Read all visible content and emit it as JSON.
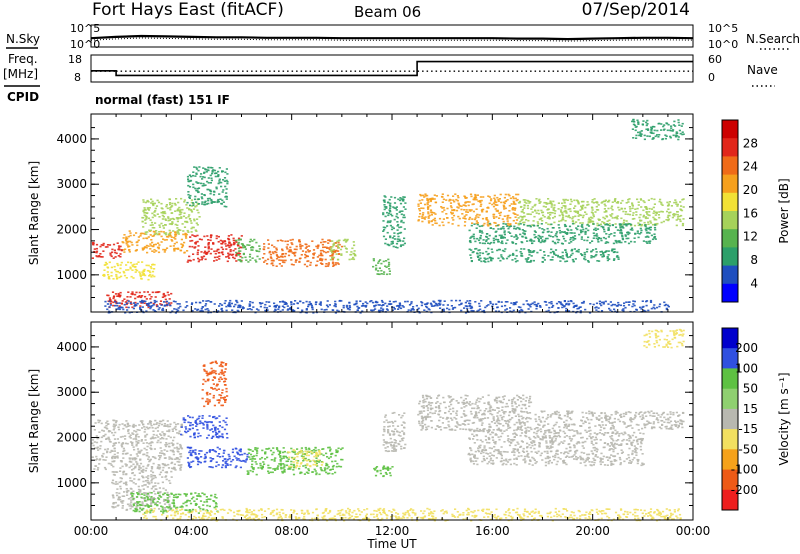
{
  "header": {
    "station": "Fort Hays East (fitACF)",
    "beam": "Beam 06",
    "date": "07/Sep/2014"
  },
  "left_labels": {
    "nsky": "N.Sky",
    "freq": "Freq.",
    "freq_unit": "[MHz]",
    "cpid": "CPID"
  },
  "right_labels": {
    "nsearch": "N.Search",
    "nave": "Nave"
  },
  "cpid_text": "normal (fast) 151 IF",
  "chart_data": [
    {
      "type": "line",
      "panel": "noise",
      "series": [
        {
          "name": "N.Sky",
          "style": "solid"
        },
        {
          "name": "N.Search",
          "style": "dotted"
        }
      ],
      "x": [
        0,
        1,
        2,
        3,
        4,
        5,
        6,
        7,
        8,
        9,
        10,
        11,
        12,
        13,
        14,
        15,
        16,
        17,
        18,
        19,
        20,
        21,
        22,
        23,
        24
      ],
      "y_nsky": [
        2.0,
        2.3,
        2.5,
        2.4,
        2.3,
        2.2,
        2.2,
        2.1,
        2.1,
        2.1,
        2.0,
        2.0,
        2.0,
        2.0,
        2.0,
        2.0,
        2.0,
        1.9,
        1.9,
        1.8,
        1.9,
        2.0,
        2.1,
        2.1,
        2.0
      ],
      "yticks": [
        "10^5",
        "10^0"
      ],
      "yticks_right": [
        "10^5",
        "10^0"
      ]
    },
    {
      "type": "line",
      "panel": "frequency-nave",
      "series": [
        {
          "name": "Freq.",
          "style": "solid"
        },
        {
          "name": "Nave",
          "style": "dotted"
        }
      ],
      "freq_steps": [
        {
          "from": 0,
          "to": 1.0,
          "value": 12
        },
        {
          "from": 1.0,
          "to": 13.0,
          "value": 10
        },
        {
          "from": 13.0,
          "to": 24,
          "value": 16
        }
      ],
      "nave_steps": [
        {
          "from": 0,
          "to": 1.0,
          "value": 24
        },
        {
          "from": 1.0,
          "to": 24,
          "value": 24
        }
      ],
      "yticks": [
        "18",
        "8"
      ],
      "yticks_right": [
        "60",
        "0"
      ]
    },
    {
      "type": "heatmap",
      "panel": "power",
      "ylabel": "Slant Range [km]",
      "colorbar_label": "Power [dB]",
      "colorbar_ticks": [
        "28",
        "24",
        "20",
        "16",
        "12",
        "8",
        "4"
      ],
      "yticks": [
        "4000",
        "3000",
        "2000",
        "1000"
      ],
      "ylim": [
        180,
        4550
      ],
      "colors": [
        "#0000ff",
        "#1f4fbf",
        "#2c9f6a",
        "#57b34f",
        "#a6d25a",
        "#f2e135",
        "#f6a01d",
        "#f06b18",
        "#e1261a",
        "#cc0000"
      ],
      "cells": [
        {
          "x": 0.0,
          "x2": 1.2,
          "y": 1380,
          "y2": 1750,
          "v": 24
        },
        {
          "x": 0.4,
          "x2": 2.5,
          "y": 900,
          "y2": 1300,
          "v": 16
        },
        {
          "x": 0.6,
          "x2": 3.2,
          "y": 300,
          "y2": 650,
          "v": 26
        },
        {
          "x": 1.2,
          "x2": 3.8,
          "y": 1500,
          "y2": 2000,
          "v": 18
        },
        {
          "x": 2.0,
          "x2": 4.3,
          "y": 1900,
          "y2": 2700,
          "v": 12
        },
        {
          "x": 3.8,
          "x2": 5.4,
          "y": 2500,
          "y2": 3400,
          "v": 8
        },
        {
          "x": 3.8,
          "x2": 6.0,
          "y": 1300,
          "y2": 1900,
          "v": 24
        },
        {
          "x": 5.7,
          "x2": 6.7,
          "y": 1300,
          "y2": 1800,
          "v": 10
        },
        {
          "x": 6.8,
          "x2": 10.0,
          "y": 1200,
          "y2": 1800,
          "v": 22
        },
        {
          "x": 9.5,
          "x2": 10.5,
          "y": 1350,
          "y2": 1800,
          "v": 14
        },
        {
          "x": 11.2,
          "x2": 11.9,
          "y": 1000,
          "y2": 1400,
          "v": 10
        },
        {
          "x": 11.6,
          "x2": 12.5,
          "y": 1600,
          "y2": 2800,
          "v": 6
        },
        {
          "x": 13.0,
          "x2": 17.0,
          "y": 2100,
          "y2": 2800,
          "v": 20
        },
        {
          "x": 17.0,
          "x2": 23.6,
          "y": 2100,
          "y2": 2700,
          "v": 14
        },
        {
          "x": 15.0,
          "x2": 22.5,
          "y": 1700,
          "y2": 2150,
          "v": 8
        },
        {
          "x": 15.0,
          "x2": 21.0,
          "y": 1300,
          "y2": 1600,
          "v": 7
        },
        {
          "x": 21.5,
          "x2": 23.6,
          "y": 4000,
          "y2": 4450,
          "v": 8
        },
        {
          "x": 0.5,
          "x2": 23.0,
          "y": 180,
          "y2": 450,
          "v": 4
        }
      ]
    },
    {
      "type": "heatmap",
      "panel": "velocity",
      "xlabel": "Time UT",
      "ylabel": "Slant Range [km]",
      "colorbar_label": "Velocity [m s⁻¹]",
      "colorbar_ticks": [
        "200",
        "100",
        "50",
        "15",
        "-15",
        "-50",
        "-100",
        "-200"
      ],
      "xticks": [
        "00:00",
        "04:00",
        "08:00",
        "12:00",
        "16:00",
        "20:00",
        "00:00"
      ],
      "yticks": [
        "4000",
        "3000",
        "2000",
        "1000"
      ],
      "ylim": [
        180,
        4550
      ],
      "colors": [
        "#0000cc",
        "#3050e0",
        "#5ec142",
        "#8fd070",
        "#b8b8b0",
        "#f2e060",
        "#f5a21b",
        "#ee5a16",
        "#ee1f1f"
      ],
      "cells": [
        {
          "x": 0.0,
          "x2": 3.6,
          "y": 1300,
          "y2": 2400,
          "v": 0
        },
        {
          "x": 0.8,
          "x2": 3.2,
          "y": 400,
          "y2": 1300,
          "v": 0
        },
        {
          "x": 3.5,
          "x2": 5.4,
          "y": 2000,
          "y2": 2500,
          "v": 160
        },
        {
          "x": 4.4,
          "x2": 5.4,
          "y": 2700,
          "y2": 3700,
          "v": -180
        },
        {
          "x": 3.8,
          "x2": 6.2,
          "y": 1350,
          "y2": 1800,
          "v": 170
        },
        {
          "x": 6.2,
          "x2": 10.0,
          "y": 1200,
          "y2": 1800,
          "v": 60
        },
        {
          "x": 7.8,
          "x2": 9.2,
          "y": 1350,
          "y2": 1750,
          "v": -40
        },
        {
          "x": 11.2,
          "x2": 12.0,
          "y": 1100,
          "y2": 1400,
          "v": 60
        },
        {
          "x": 11.6,
          "x2": 12.5,
          "y": 1700,
          "y2": 2600,
          "v": 10
        },
        {
          "x": 13.0,
          "x2": 17.5,
          "y": 2150,
          "y2": 2950,
          "v": 0
        },
        {
          "x": 17.5,
          "x2": 23.6,
          "y": 2200,
          "y2": 2600,
          "v": 0
        },
        {
          "x": 15.0,
          "x2": 22.0,
          "y": 1400,
          "y2": 2200,
          "v": 0
        },
        {
          "x": 22.0,
          "x2": 23.6,
          "y": 4000,
          "y2": 4400,
          "v": -40
        },
        {
          "x": 1.5,
          "x2": 5.0,
          "y": 350,
          "y2": 800,
          "v": 60
        },
        {
          "x": 2.0,
          "x2": 23.5,
          "y": 180,
          "y2": 450,
          "v": -40
        }
      ]
    }
  ]
}
